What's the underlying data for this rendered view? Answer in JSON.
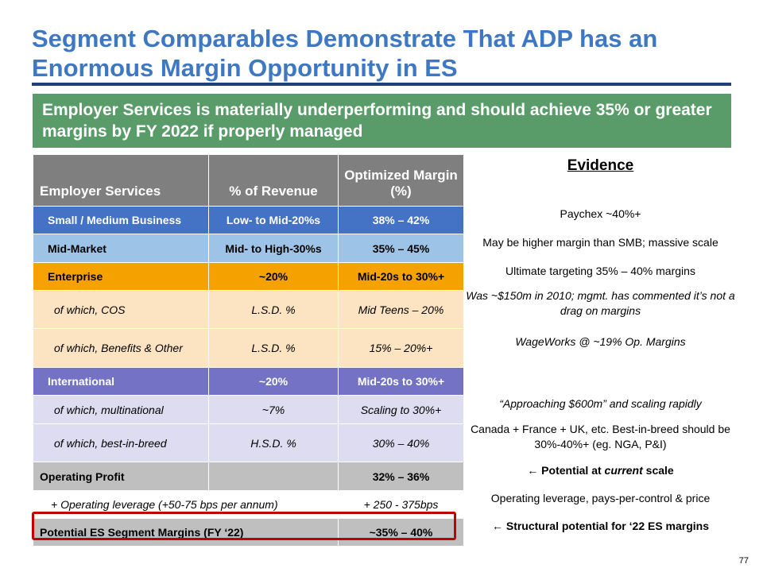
{
  "title": "Segment Comparables Demonstrate That ADP has an Enormous Margin Opportunity in ES",
  "banner": "Employer Services is materially underperforming and should achieve 35% or greater margins by FY 2022 if properly managed",
  "table": {
    "headers": [
      "Employer Services",
      "% of Revenue",
      "Optimized Margin (%)"
    ],
    "rows": [
      {
        "label": "Small / Medium Business",
        "revenue": "Low- to Mid-20%s",
        "margin": "38% – 42%"
      },
      {
        "label": "Mid-Market",
        "revenue": "Mid- to High-30%s",
        "margin": "35% – 45%"
      },
      {
        "label": "Enterprise",
        "revenue": "~20%",
        "margin": "Mid-20s to 30%+"
      },
      {
        "label": "of which, COS",
        "revenue": "L.S.D. %",
        "margin": "Mid Teens – 20%"
      },
      {
        "label": "of which, Benefits & Other",
        "revenue": "L.S.D. %",
        "margin": "15% – 20%+"
      },
      {
        "label": "International",
        "revenue": "~20%",
        "margin": "Mid-20s to 30%+"
      },
      {
        "label": "of which, multinational",
        "revenue": "~7%",
        "margin": "Scaling to 30%+"
      },
      {
        "label": "of which, best-in-breed",
        "revenue": "H.S.D. %",
        "margin": "30% – 40%"
      },
      {
        "label": "Operating Profit",
        "revenue": "",
        "margin": "32% – 36%"
      },
      {
        "label": "+ Operating leverage (+50-75 bps per annum)",
        "margin": "+ 250 - 375bps"
      },
      {
        "label": "Potential ES Segment Margins (FY ‘22)",
        "margin": "~35% – 40%"
      }
    ]
  },
  "evidence": {
    "header": "Evidence",
    "items": [
      "Paychex ~40%+",
      "May be higher margin than SMB; massive scale",
      "Ultimate targeting 35% – 40% margins",
      "Was  ~$150m in 2010; mgmt. has commented it’s not a drag on margins",
      "WageWorks @ ~19% Op. Margins",
      "“Approaching $600m” and scaling rapidly",
      "Canada + France + UK, etc. Best-in-breed should be 30%-40%+ (eg. NGA, P&I)",
      "← Potential at current scale",
      "Operating leverage, pays-per-control & price",
      "← Structural potential for ‘22 ES margins"
    ]
  },
  "page_number": "77",
  "colors": {
    "title": "#3E78C2",
    "banner": "#5A9B6A",
    "header": "#7F7F7F",
    "smb": "#4472C4",
    "mid_market": "#9DC3E6",
    "enterprise": "#F5A100",
    "enterprise_sub": "#FCE4C3",
    "international": "#7472C4",
    "international_sub": "#DDDCF0",
    "highlight_border": "#C00000"
  }
}
